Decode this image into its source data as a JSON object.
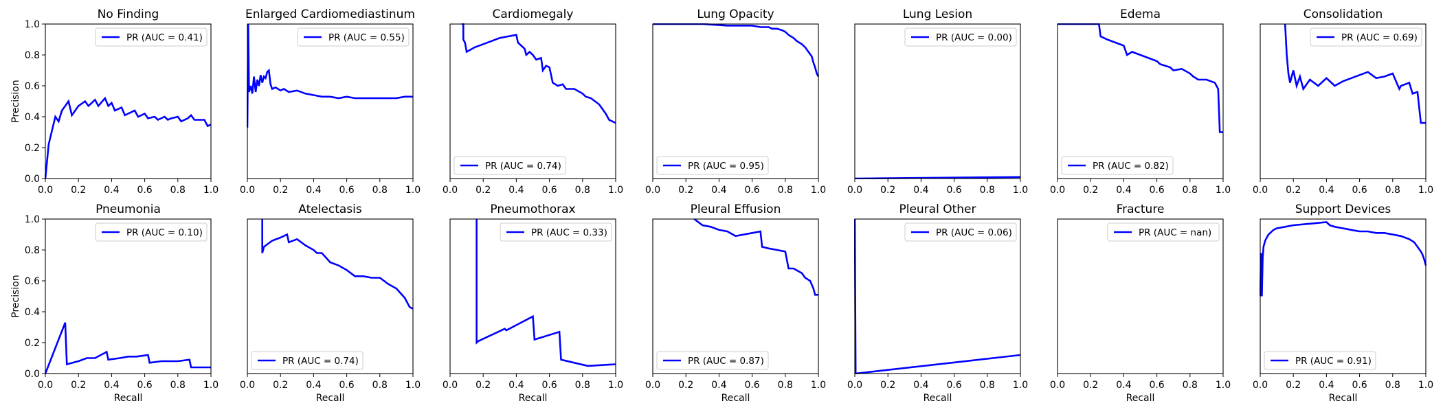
{
  "figure": {
    "ylabel": "Precision",
    "xlabel": "Recall"
  },
  "chart_data": [
    {
      "type": "line",
      "title": "No Finding",
      "legend": "PR (AUC = 0.41)",
      "legend_loc": "upper right",
      "x": [
        0,
        0.02,
        0.04,
        0.06,
        0.08,
        0.1,
        0.12,
        0.14,
        0.16,
        0.16,
        0.2,
        0.24,
        0.26,
        0.3,
        0.32,
        0.36,
        0.38,
        0.4,
        0.42,
        0.46,
        0.48,
        0.54,
        0.56,
        0.6,
        0.62,
        0.66,
        0.68,
        0.72,
        0.74,
        0.76,
        0.8,
        0.82,
        0.86,
        0.88,
        0.9,
        0.96,
        0.98,
        1.0
      ],
      "y": [
        0,
        0.22,
        0.31,
        0.4,
        0.37,
        0.44,
        0.47,
        0.5,
        0.41,
        0.41,
        0.47,
        0.5,
        0.47,
        0.51,
        0.47,
        0.52,
        0.47,
        0.49,
        0.44,
        0.46,
        0.41,
        0.44,
        0.4,
        0.42,
        0.39,
        0.4,
        0.38,
        0.4,
        0.38,
        0.39,
        0.4,
        0.37,
        0.39,
        0.41,
        0.38,
        0.38,
        0.34,
        0.35
      ],
      "xlim": [
        0,
        1
      ],
      "ylim": [
        0,
        1
      ],
      "show_ylabel": true,
      "show_xlabel": false
    },
    {
      "type": "line",
      "title": "Enlarged Cardiomediastinum",
      "legend": "PR (AUC = 0.55)",
      "legend_loc": "upper right",
      "x": [
        0,
        0.005,
        0.01,
        0.02,
        0.03,
        0.04,
        0.05,
        0.06,
        0.07,
        0.08,
        0.09,
        0.1,
        0.11,
        0.12,
        0.13,
        0.14,
        0.15,
        0.17,
        0.2,
        0.22,
        0.25,
        0.3,
        0.35,
        0.4,
        0.45,
        0.5,
        0.55,
        0.6,
        0.65,
        0.7,
        0.75,
        0.8,
        0.85,
        0.9,
        0.95,
        1.0
      ],
      "y": [
        0.33,
        1.0,
        0.56,
        0.6,
        0.55,
        0.66,
        0.56,
        0.64,
        0.6,
        0.67,
        0.62,
        0.66,
        0.65,
        0.69,
        0.7,
        0.61,
        0.58,
        0.59,
        0.57,
        0.58,
        0.56,
        0.57,
        0.55,
        0.54,
        0.53,
        0.53,
        0.52,
        0.53,
        0.52,
        0.52,
        0.52,
        0.52,
        0.52,
        0.52,
        0.53,
        0.53
      ],
      "xlim": [
        0,
        1
      ],
      "ylim": [
        0,
        1
      ],
      "show_ylabel": false,
      "show_xlabel": false
    },
    {
      "type": "line",
      "title": "Cardiomegaly",
      "legend": "PR (AUC = 0.74)",
      "legend_loc": "lower left",
      "x": [
        0.07,
        0.08,
        0.08,
        0.09,
        0.1,
        0.15,
        0.2,
        0.25,
        0.3,
        0.35,
        0.4,
        0.41,
        0.42,
        0.45,
        0.46,
        0.48,
        0.5,
        0.52,
        0.55,
        0.56,
        0.58,
        0.6,
        0.62,
        0.65,
        0.68,
        0.7,
        0.75,
        0.8,
        0.82,
        0.85,
        0.9,
        0.92,
        0.94,
        0.96,
        0.98,
        1.0
      ],
      "y": [
        1.0,
        1.0,
        0.9,
        0.88,
        0.82,
        0.85,
        0.87,
        0.89,
        0.91,
        0.92,
        0.93,
        0.88,
        0.87,
        0.84,
        0.8,
        0.82,
        0.8,
        0.77,
        0.78,
        0.7,
        0.73,
        0.72,
        0.62,
        0.6,
        0.61,
        0.58,
        0.58,
        0.55,
        0.53,
        0.52,
        0.48,
        0.45,
        0.42,
        0.38,
        0.37,
        0.36
      ],
      "xlim": [
        0,
        1
      ],
      "ylim": [
        0,
        1
      ],
      "show_ylabel": false,
      "show_xlabel": false
    },
    {
      "type": "line",
      "title": "Lung Opacity",
      "legend": "PR (AUC = 0.95)",
      "legend_loc": "lower left",
      "x": [
        0,
        0.3,
        0.45,
        0.6,
        0.65,
        0.7,
        0.72,
        0.75,
        0.78,
        0.8,
        0.82,
        0.85,
        0.87,
        0.9,
        0.92,
        0.94,
        0.96,
        0.97,
        0.98,
        0.99,
        1.0
      ],
      "y": [
        1.0,
        1.0,
        0.99,
        0.99,
        0.98,
        0.98,
        0.97,
        0.97,
        0.96,
        0.95,
        0.93,
        0.91,
        0.89,
        0.87,
        0.85,
        0.82,
        0.79,
        0.75,
        0.72,
        0.68,
        0.66
      ],
      "xlim": [
        0,
        1
      ],
      "ylim": [
        0,
        1
      ],
      "show_ylabel": false,
      "show_xlabel": false
    },
    {
      "type": "line",
      "title": "Lung Lesion",
      "legend": "PR (AUC = 0.00)",
      "legend_loc": "upper right",
      "x": [
        0,
        1.0
      ],
      "y": [
        0,
        0.01
      ],
      "xlim": [
        0,
        1
      ],
      "ylim": [
        0,
        1
      ],
      "show_ylabel": false,
      "show_xlabel": false
    },
    {
      "type": "line",
      "title": "Edema",
      "legend": "PR (AUC = 0.82)",
      "legend_loc": "lower left",
      "x": [
        0,
        0.25,
        0.26,
        0.3,
        0.35,
        0.4,
        0.42,
        0.45,
        0.5,
        0.55,
        0.6,
        0.62,
        0.65,
        0.68,
        0.7,
        0.75,
        0.8,
        0.82,
        0.85,
        0.9,
        0.95,
        0.97,
        0.98,
        1.0
      ],
      "y": [
        1.0,
        1.0,
        0.92,
        0.9,
        0.88,
        0.86,
        0.8,
        0.82,
        0.8,
        0.78,
        0.76,
        0.74,
        0.73,
        0.72,
        0.7,
        0.71,
        0.68,
        0.66,
        0.64,
        0.64,
        0.62,
        0.58,
        0.3,
        0.3
      ],
      "xlim": [
        0,
        1
      ],
      "ylim": [
        0,
        1
      ],
      "show_ylabel": false,
      "show_xlabel": false
    },
    {
      "type": "line",
      "title": "Consolidation",
      "legend": "PR (AUC = 0.69)",
      "legend_loc": "upper right",
      "x": [
        0.15,
        0.16,
        0.17,
        0.18,
        0.2,
        0.22,
        0.24,
        0.26,
        0.3,
        0.35,
        0.4,
        0.45,
        0.5,
        0.55,
        0.6,
        0.65,
        0.7,
        0.75,
        0.8,
        0.84,
        0.85,
        0.9,
        0.92,
        0.95,
        0.97,
        1.0
      ],
      "y": [
        1.0,
        0.8,
        0.68,
        0.62,
        0.7,
        0.6,
        0.66,
        0.58,
        0.64,
        0.6,
        0.65,
        0.6,
        0.63,
        0.65,
        0.67,
        0.69,
        0.65,
        0.66,
        0.68,
        0.58,
        0.6,
        0.62,
        0.55,
        0.56,
        0.36,
        0.36
      ],
      "xlim": [
        0,
        1
      ],
      "ylim": [
        0,
        1
      ],
      "show_ylabel": false,
      "show_xlabel": false
    },
    {
      "type": "line",
      "title": "Pneumonia",
      "legend": "PR (AUC = 0.10)",
      "legend_loc": "upper right",
      "x": [
        0,
        0.12,
        0.13,
        0.2,
        0.25,
        0.3,
        0.37,
        0.38,
        0.45,
        0.5,
        0.55,
        0.62,
        0.63,
        0.7,
        0.75,
        0.8,
        0.87,
        0.88,
        1.0
      ],
      "y": [
        0,
        0.33,
        0.06,
        0.08,
        0.1,
        0.1,
        0.14,
        0.09,
        0.1,
        0.11,
        0.11,
        0.12,
        0.07,
        0.08,
        0.08,
        0.08,
        0.09,
        0.04,
        0.04
      ],
      "xlim": [
        0,
        1
      ],
      "ylim": [
        0,
        1
      ],
      "show_ylabel": true,
      "show_xlabel": true
    },
    {
      "type": "line",
      "title": "Atelectasis",
      "legend": "PR (AUC = 0.74)",
      "legend_loc": "lower left",
      "x": [
        0.09,
        0.09,
        0.1,
        0.15,
        0.2,
        0.24,
        0.25,
        0.3,
        0.35,
        0.4,
        0.42,
        0.45,
        0.5,
        0.55,
        0.6,
        0.65,
        0.7,
        0.75,
        0.8,
        0.85,
        0.9,
        0.95,
        0.98,
        1.0
      ],
      "y": [
        1.0,
        0.78,
        0.82,
        0.86,
        0.88,
        0.9,
        0.85,
        0.87,
        0.83,
        0.8,
        0.78,
        0.78,
        0.72,
        0.7,
        0.67,
        0.63,
        0.63,
        0.62,
        0.62,
        0.58,
        0.55,
        0.49,
        0.43,
        0.42
      ],
      "xlim": [
        0,
        1
      ],
      "ylim": [
        0,
        1
      ],
      "show_ylabel": false,
      "show_xlabel": true
    },
    {
      "type": "line",
      "title": "Pneumothorax",
      "legend": "PR (AUC = 0.33)",
      "legend_loc": "upper right",
      "x": [
        0.16,
        0.16,
        0.17,
        0.33,
        0.34,
        0.5,
        0.51,
        0.66,
        0.67,
        0.83,
        0.84,
        1.0
      ],
      "y": [
        1.0,
        0.2,
        0.21,
        0.29,
        0.28,
        0.37,
        0.22,
        0.27,
        0.09,
        0.05,
        0.05,
        0.06
      ],
      "xlim": [
        0,
        1
      ],
      "ylim": [
        0,
        1
      ],
      "show_ylabel": false,
      "show_xlabel": true
    },
    {
      "type": "line",
      "title": "Pleural Effusion",
      "legend": "PR (AUC = 0.87)",
      "legend_loc": "lower left",
      "x": [
        0.25,
        0.3,
        0.35,
        0.4,
        0.45,
        0.5,
        0.55,
        0.6,
        0.65,
        0.66,
        0.7,
        0.75,
        0.8,
        0.82,
        0.85,
        0.9,
        0.92,
        0.95,
        0.97,
        0.98,
        1.0
      ],
      "y": [
        1.0,
        0.96,
        0.95,
        0.93,
        0.92,
        0.89,
        0.9,
        0.91,
        0.92,
        0.82,
        0.81,
        0.8,
        0.79,
        0.68,
        0.68,
        0.65,
        0.62,
        0.6,
        0.55,
        0.51,
        0.51
      ],
      "xlim": [
        0,
        1
      ],
      "ylim": [
        0,
        1
      ],
      "show_ylabel": false,
      "show_xlabel": true
    },
    {
      "type": "line",
      "title": "Pleural Other",
      "legend": "PR (AUC = 0.06)",
      "legend_loc": "upper right",
      "x": [
        0,
        0.005,
        1.0
      ],
      "y": [
        1.0,
        0.0,
        0.12
      ],
      "xlim": [
        0,
        1
      ],
      "ylim": [
        0,
        1
      ],
      "show_ylabel": false,
      "show_xlabel": true
    },
    {
      "type": "line",
      "title": "Fracture",
      "legend": "PR (AUC = nan)",
      "legend_loc": "upper right",
      "x": [],
      "y": [],
      "xlim": [
        0,
        1
      ],
      "ylim": [
        0,
        1
      ],
      "show_ylabel": false,
      "show_xlabel": true
    },
    {
      "type": "line",
      "title": "Support Devices",
      "legend": "PR (AUC = 0.91)",
      "legend_loc": "lower left",
      "x": [
        0,
        0.005,
        0.01,
        0.015,
        0.02,
        0.03,
        0.05,
        0.08,
        0.1,
        0.15,
        0.2,
        0.3,
        0.4,
        0.42,
        0.45,
        0.5,
        0.55,
        0.6,
        0.65,
        0.7,
        0.75,
        0.8,
        0.85,
        0.9,
        0.93,
        0.95,
        0.97,
        0.98,
        0.99,
        1.0
      ],
      "y": [
        0.5,
        0.78,
        0.5,
        0.75,
        0.82,
        0.86,
        0.9,
        0.93,
        0.94,
        0.95,
        0.96,
        0.97,
        0.98,
        0.96,
        0.95,
        0.94,
        0.93,
        0.92,
        0.92,
        0.91,
        0.91,
        0.9,
        0.89,
        0.87,
        0.85,
        0.82,
        0.79,
        0.77,
        0.74,
        0.7
      ],
      "xlim": [
        0,
        1
      ],
      "ylim": [
        0,
        1
      ],
      "show_ylabel": false,
      "show_xlabel": true
    }
  ],
  "style": {
    "line_color": "#0000ff",
    "frame_color": "#000000",
    "legend_edge": "#cccccc"
  },
  "ticks": {
    "x": [
      "0.0",
      "0.2",
      "0.4",
      "0.6",
      "0.8",
      "1.0"
    ],
    "y": [
      "0.0",
      "0.2",
      "0.4",
      "0.6",
      "0.8",
      "1.0"
    ]
  }
}
